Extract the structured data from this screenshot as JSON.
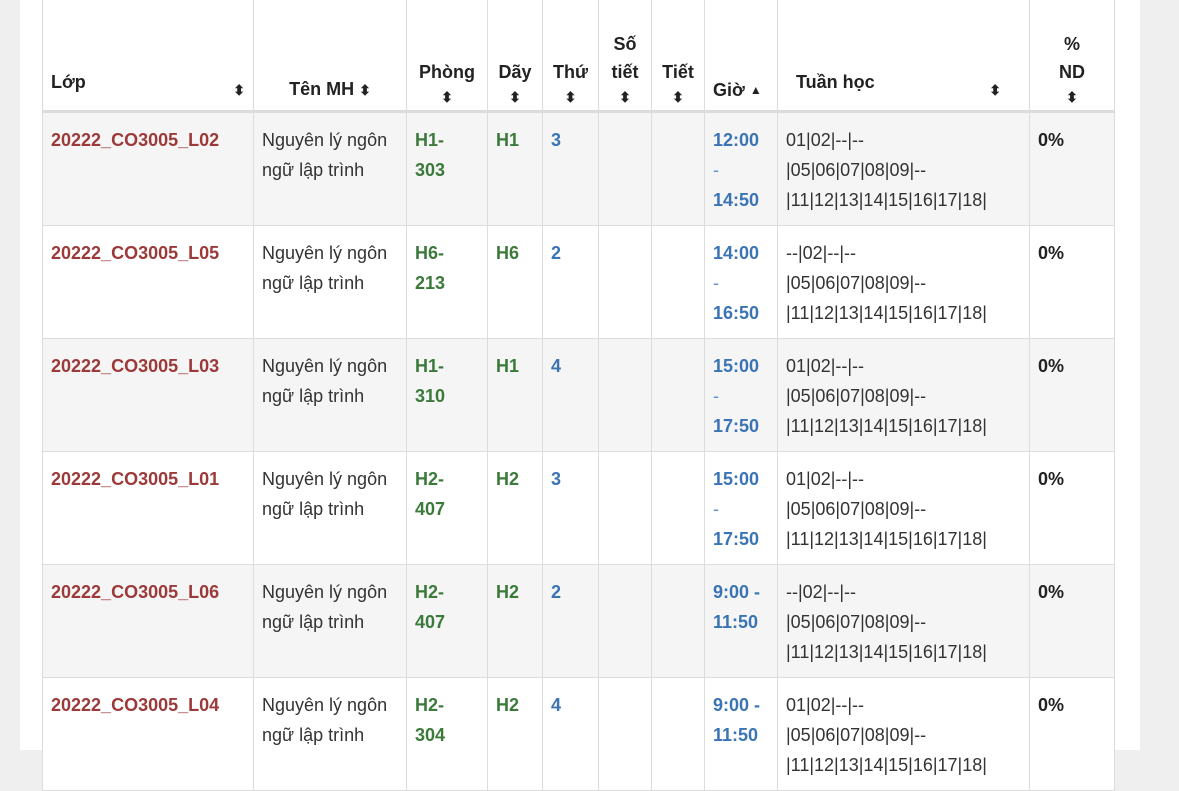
{
  "headers": {
    "lop": "Lớp",
    "ten_mh": "Tên MH",
    "phong": "Phòng",
    "day": "Dãy",
    "thu": "Thứ",
    "so_tiet_1": "Số",
    "so_tiet_2": "tiết",
    "tiet": "Tiết",
    "gio": "Giờ",
    "tuan_hoc": "Tuần học",
    "nd_1": "%",
    "nd_2": "ND",
    "sort_icon": "⬍",
    "sort_up_icon": "▲"
  },
  "rows": [
    {
      "lop": "20222_CO3005_L02",
      "ten_mh": "Nguyên lý ngôn ngữ lập trình",
      "phong_a": "H1-",
      "phong_b": "303",
      "day": "H1",
      "thu": "3",
      "gio_start": "12:00",
      "gio_sep": "-",
      "gio_end": "14:50",
      "tuan_1": "01|02|--|--",
      "tuan_2": "|05|06|07|08|09|--",
      "tuan_3": "|11|12|13|14|15|16|17|18|",
      "nd": "0%"
    },
    {
      "lop": "20222_CO3005_L05",
      "ten_mh": "Nguyên lý ngôn ngữ lập trình",
      "phong_a": "H6-",
      "phong_b": "213",
      "day": "H6",
      "thu": "2",
      "gio_start": "14:00",
      "gio_sep": "-",
      "gio_end": "16:50",
      "tuan_1": "--|02|--|--",
      "tuan_2": "|05|06|07|08|09|--",
      "tuan_3": "|11|12|13|14|15|16|17|18|",
      "nd": "0%"
    },
    {
      "lop": "20222_CO3005_L03",
      "ten_mh": "Nguyên lý ngôn ngữ lập trình",
      "phong_a": "H1-",
      "phong_b": "310",
      "day": "H1",
      "thu": "4",
      "gio_start": "15:00",
      "gio_sep": "-",
      "gio_end": "17:50",
      "tuan_1": "01|02|--|--",
      "tuan_2": "|05|06|07|08|09|--",
      "tuan_3": "|11|12|13|14|15|16|17|18|",
      "nd": "0%"
    },
    {
      "lop": "20222_CO3005_L01",
      "ten_mh": "Nguyên lý ngôn ngữ lập trình",
      "phong_a": "H2-",
      "phong_b": "407",
      "day": "H2",
      "thu": "3",
      "gio_start": "15:00",
      "gio_sep": "-",
      "gio_end": "17:50",
      "tuan_1": "01|02|--|--",
      "tuan_2": "|05|06|07|08|09|--",
      "tuan_3": "|11|12|13|14|15|16|17|18|",
      "nd": "0%"
    },
    {
      "lop": "20222_CO3005_L06",
      "ten_mh": "Nguyên lý ngôn ngữ lập trình",
      "phong_a": "H2-",
      "phong_b": "407",
      "day": "H2",
      "thu": "2",
      "gio_start": "9:00 -",
      "gio_sep": "",
      "gio_end": "11:50",
      "tuan_1": "--|02|--|--",
      "tuan_2": "|05|06|07|08|09|--",
      "tuan_3": "|11|12|13|14|15|16|17|18|",
      "nd": "0%"
    },
    {
      "lop": "20222_CO3005_L04",
      "ten_mh": "Nguyên lý ngôn ngữ lập trình",
      "phong_a": "H2-",
      "phong_b": "304",
      "day": "H2",
      "thu": "4",
      "gio_start": "9:00 -",
      "gio_sep": "",
      "gio_end": "11:50",
      "tuan_1": "01|02|--|--",
      "tuan_2": "|05|06|07|08|09|--",
      "tuan_3": "|11|12|13|14|15|16|17|18|",
      "nd": "0%"
    }
  ]
}
